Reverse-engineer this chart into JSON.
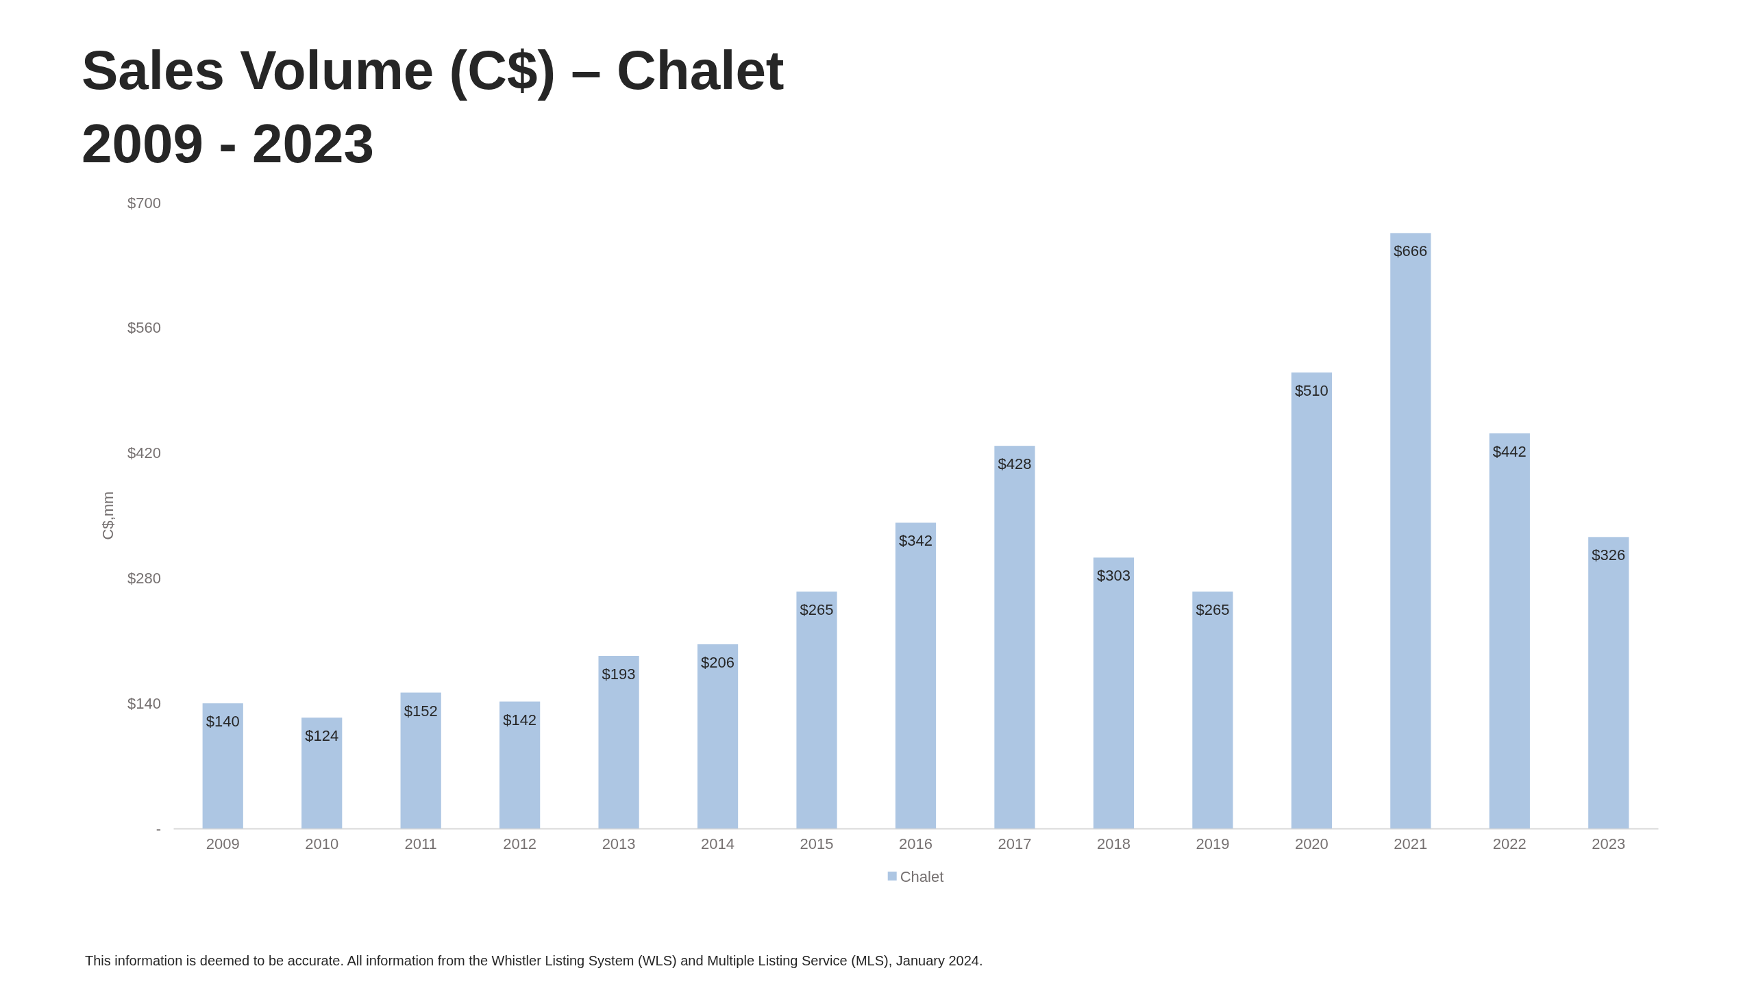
{
  "chart_data": {
    "type": "bar",
    "title": "Sales Volume (C$) – Chalet",
    "subtitle": "2009 - 2023",
    "ylabel": "C$,mm",
    "categories": [
      "2009",
      "2010",
      "2011",
      "2012",
      "2013",
      "2014",
      "2015",
      "2016",
      "2017",
      "2018",
      "2019",
      "2020",
      "2021",
      "2022",
      "2023"
    ],
    "series": [
      {
        "name": "Chalet",
        "color": "#adc6e3",
        "values": [
          140,
          124,
          152,
          142,
          193,
          206,
          265,
          342,
          428,
          303,
          265,
          510,
          666,
          442,
          326
        ],
        "value_labels": [
          "$140",
          "$124",
          "$152",
          "$142",
          "$193",
          "$206",
          "$265",
          "$342",
          "$428",
          "$303",
          "$265",
          "$510",
          "$666",
          "$442",
          "$326"
        ]
      }
    ],
    "ylim": [
      0,
      700
    ],
    "yticks": [
      {
        "value": 0,
        "label": "-"
      },
      {
        "value": 140,
        "label": "$140"
      },
      {
        "value": 280,
        "label": "$280"
      },
      {
        "value": 420,
        "label": "$420"
      },
      {
        "value": 560,
        "label": "$560"
      },
      {
        "value": 700,
        "label": "$700"
      }
    ],
    "legend": "bottom",
    "annotations": [
      "This information is deemed to be accurate. All information from the Whistler Listing System (WLS) and Multiple Listing Service (MLS), January 2024."
    ]
  }
}
